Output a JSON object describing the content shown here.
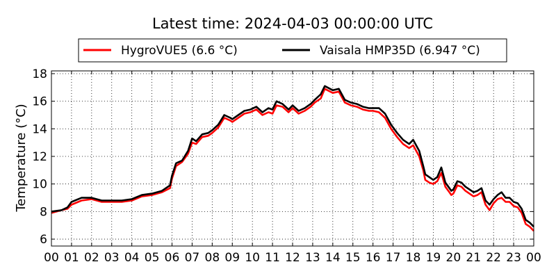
{
  "chart_data": {
    "type": "line",
    "title": "Latest time: 2024-04-03 00:00:00 UTC",
    "xlabel": "",
    "ylabel": "Temperature (°C)",
    "xlim": [
      0,
      24
    ],
    "ylim": [
      5.5,
      18.2
    ],
    "x_ticks": [
      0,
      1,
      2,
      3,
      4,
      5,
      6,
      7,
      8,
      9,
      10,
      11,
      12,
      13,
      14,
      15,
      16,
      17,
      18,
      19,
      20,
      21,
      22,
      23,
      24
    ],
    "x_tick_labels": [
      "00",
      "01",
      "02",
      "03",
      "04",
      "05",
      "06",
      "07",
      "08",
      "09",
      "10",
      "11",
      "12",
      "13",
      "14",
      "15",
      "16",
      "17",
      "18",
      "19",
      "20",
      "21",
      "22",
      "23",
      "00"
    ],
    "y_ticks": [
      6,
      8,
      10,
      12,
      14,
      16,
      18
    ],
    "y_tick_labels": [
      "6",
      "8",
      "10",
      "12",
      "14",
      "16",
      "18"
    ],
    "grid": true,
    "legend_position": "top",
    "series": [
      {
        "name": "HygroVUE5 (6.6 °C)",
        "color": "#ff0000",
        "x": [
          0,
          0.5,
          0.8,
          1.0,
          1.5,
          2.0,
          2.5,
          3.0,
          3.5,
          4.0,
          4.5,
          5.0,
          5.5,
          5.9,
          6.0,
          6.2,
          6.5,
          6.8,
          7.0,
          7.2,
          7.5,
          7.8,
          8.0,
          8.3,
          8.6,
          8.9,
          9.0,
          9.3,
          9.6,
          9.9,
          10.2,
          10.5,
          10.8,
          11.0,
          11.2,
          11.5,
          11.8,
          12.0,
          12.3,
          12.6,
          12.9,
          13.1,
          13.4,
          13.6,
          14.0,
          14.3,
          14.6,
          14.9,
          15.2,
          15.5,
          15.8,
          16.0,
          16.3,
          16.6,
          16.9,
          17.2,
          17.5,
          17.8,
          18.0,
          18.3,
          18.5,
          18.6,
          18.8,
          19.0,
          19.2,
          19.4,
          19.6,
          19.8,
          19.9,
          20.0,
          20.2,
          20.4,
          20.6,
          20.8,
          21.0,
          21.2,
          21.4,
          21.6,
          21.8,
          22.0,
          22.2,
          22.4,
          22.6,
          22.8,
          23.0,
          23.2,
          23.4,
          23.6,
          23.8,
          24.0
        ],
        "values": [
          7.9,
          8.1,
          8.2,
          8.5,
          8.8,
          8.9,
          8.7,
          8.7,
          8.7,
          8.8,
          9.1,
          9.2,
          9.4,
          9.7,
          10.4,
          11.3,
          11.6,
          12.2,
          13.0,
          12.9,
          13.4,
          13.5,
          13.7,
          14.1,
          14.8,
          14.6,
          14.5,
          14.8,
          15.1,
          15.2,
          15.4,
          15.0,
          15.2,
          15.1,
          15.7,
          15.6,
          15.2,
          15.5,
          15.1,
          15.3,
          15.6,
          15.9,
          16.2,
          16.9,
          16.6,
          16.7,
          15.9,
          15.7,
          15.6,
          15.4,
          15.3,
          15.3,
          15.2,
          14.8,
          14.0,
          13.4,
          12.9,
          12.6,
          12.8,
          12.0,
          11.0,
          10.3,
          10.1,
          10.0,
          10.2,
          10.8,
          9.8,
          9.4,
          9.2,
          9.3,
          9.9,
          9.8,
          9.5,
          9.3,
          9.1,
          9.2,
          9.4,
          8.5,
          8.1,
          8.6,
          8.9,
          9.0,
          8.7,
          8.7,
          8.4,
          8.3,
          7.9,
          7.1,
          6.9,
          6.6
        ]
      },
      {
        "name": "Vaisala HMP35D (6.947 °C)",
        "color": "#000000",
        "x": [
          0,
          0.5,
          0.8,
          1.0,
          1.5,
          2.0,
          2.5,
          3.0,
          3.5,
          4.0,
          4.5,
          5.0,
          5.5,
          5.9,
          6.0,
          6.2,
          6.5,
          6.8,
          7.0,
          7.2,
          7.5,
          7.8,
          8.0,
          8.3,
          8.6,
          8.9,
          9.0,
          9.3,
          9.6,
          9.9,
          10.2,
          10.5,
          10.8,
          11.0,
          11.2,
          11.5,
          11.8,
          12.0,
          12.3,
          12.6,
          12.9,
          13.1,
          13.4,
          13.6,
          14.0,
          14.3,
          14.6,
          14.9,
          15.2,
          15.5,
          15.8,
          16.0,
          16.3,
          16.6,
          16.9,
          17.2,
          17.5,
          17.8,
          18.0,
          18.3,
          18.5,
          18.6,
          18.8,
          19.0,
          19.2,
          19.4,
          19.6,
          19.8,
          19.9,
          20.0,
          20.2,
          20.4,
          20.6,
          20.8,
          21.0,
          21.2,
          21.4,
          21.6,
          21.8,
          22.0,
          22.2,
          22.4,
          22.6,
          22.8,
          23.0,
          23.2,
          23.4,
          23.6,
          23.8,
          24.0
        ],
        "values": [
          8.0,
          8.1,
          8.3,
          8.7,
          9.0,
          9.0,
          8.8,
          8.8,
          8.8,
          8.9,
          9.2,
          9.3,
          9.5,
          9.9,
          10.6,
          11.5,
          11.7,
          12.4,
          13.3,
          13.1,
          13.6,
          13.7,
          13.9,
          14.3,
          15.0,
          14.8,
          14.7,
          15.0,
          15.3,
          15.4,
          15.6,
          15.2,
          15.5,
          15.4,
          16.0,
          15.8,
          15.4,
          15.7,
          15.3,
          15.5,
          15.8,
          16.1,
          16.5,
          17.1,
          16.8,
          16.9,
          16.1,
          15.9,
          15.8,
          15.6,
          15.5,
          15.5,
          15.5,
          15.1,
          14.3,
          13.7,
          13.2,
          12.9,
          13.2,
          12.4,
          11.3,
          10.7,
          10.5,
          10.3,
          10.5,
          11.2,
          10.1,
          9.7,
          9.5,
          9.6,
          10.2,
          10.1,
          9.8,
          9.6,
          9.4,
          9.5,
          9.7,
          8.8,
          8.5,
          8.9,
          9.2,
          9.4,
          9.0,
          9.0,
          8.7,
          8.6,
          8.2,
          7.4,
          7.2,
          6.9
        ]
      }
    ]
  }
}
